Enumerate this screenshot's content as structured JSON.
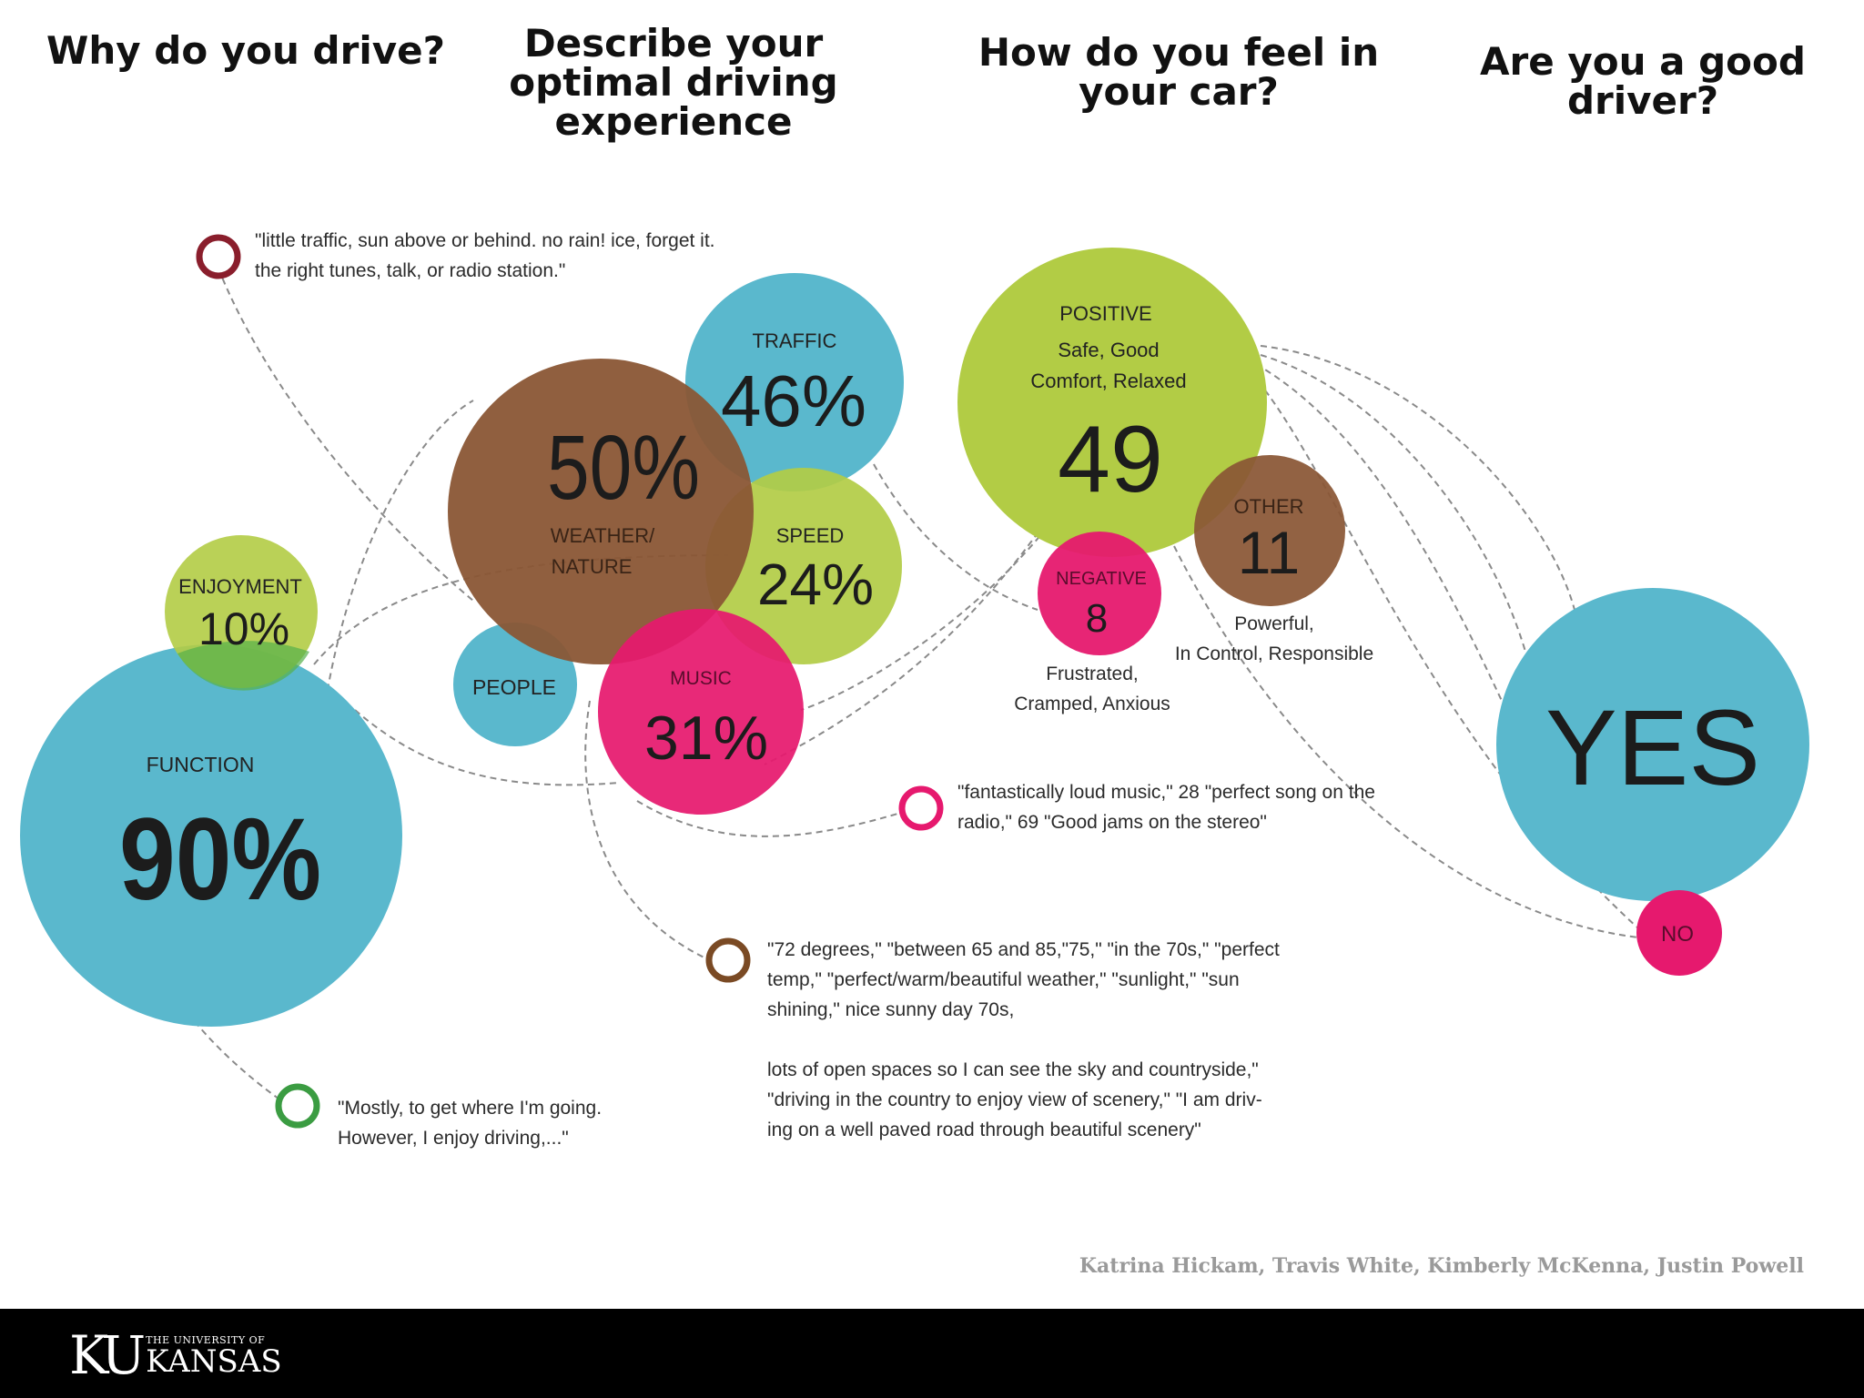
{
  "questions": {
    "q1": "Why do you drive?",
    "q2": "Describe your\noptimal driving\nexperience",
    "q3": "How do you feel in\nyour car?",
    "q4": "Are you a good\ndriver?"
  },
  "colors": {
    "blue": "#5ab8cd",
    "green": "#b2cc45",
    "brown": "#8a5635",
    "pink": "#e6196e",
    "darkred": "#8a1e2c",
    "ringgreen": "#3b9c42",
    "ringbrown": "#7a4a24"
  },
  "bubbles": {
    "function": {
      "label": "FUNCTION",
      "value": "90%"
    },
    "enjoyment": {
      "label": "ENJOYMENT",
      "value": "10%"
    },
    "weather": {
      "label": "WEATHER/\nNATURE",
      "value": "50%"
    },
    "traffic": {
      "label": "TRAFFIC",
      "value": "46%"
    },
    "speed": {
      "label": "SPEED",
      "value": "24%"
    },
    "music": {
      "label": "MUSIC",
      "value": "31%"
    },
    "people": {
      "label": "PEOPLE"
    },
    "positive": {
      "label": "POSITIVE",
      "sub1": "Safe, Good",
      "sub2": "Comfort, Relaxed",
      "value": "49"
    },
    "negative": {
      "label": "NEGATIVE",
      "value": "8"
    },
    "other": {
      "label": "OTHER",
      "value": "11"
    },
    "yes": {
      "label": "YES"
    },
    "no": {
      "label": "NO"
    }
  },
  "notes": {
    "negative_desc": "Frustrated,\nCramped, Anxious",
    "other_desc": "Powerful,\nIn Control, Responsible"
  },
  "quotes": {
    "weather_quote": "\"little traffic, sun above or behind. no rain!  ice, forget it.\nthe right tunes, talk, or radio station.\"",
    "music_quote": "\"fantastically loud music,\" 28 \"perfect song on the\nradio,\" 69 \"Good jams on the stereo\"",
    "temp_quote": "\"72 degrees,\" \"between 65 and 85,\"75,\" \"in the 70s,\" \"perfect\ntemp,\" \"perfect/warm/beautiful weather,\" \"sunlight,\" \"sun\nshining,\" nice sunny day 70s,\n\nlots of open spaces so I can see the sky and countryside,\"\n\"driving in the country to enjoy view of scenery,\" \"I am driv-\ning on a well paved road through beautiful scenery\"",
    "function_quote": "\"Mostly, to get where I'm going.\nHowever, I enjoy driving,...\""
  },
  "credits": "Katrina Hickam, Travis White, Kimberly McKenna, Justin Powell",
  "footer": {
    "logo_ku": "KU",
    "logo_small": "THE UNIVERSITY OF",
    "logo_big": "KANSAS"
  }
}
